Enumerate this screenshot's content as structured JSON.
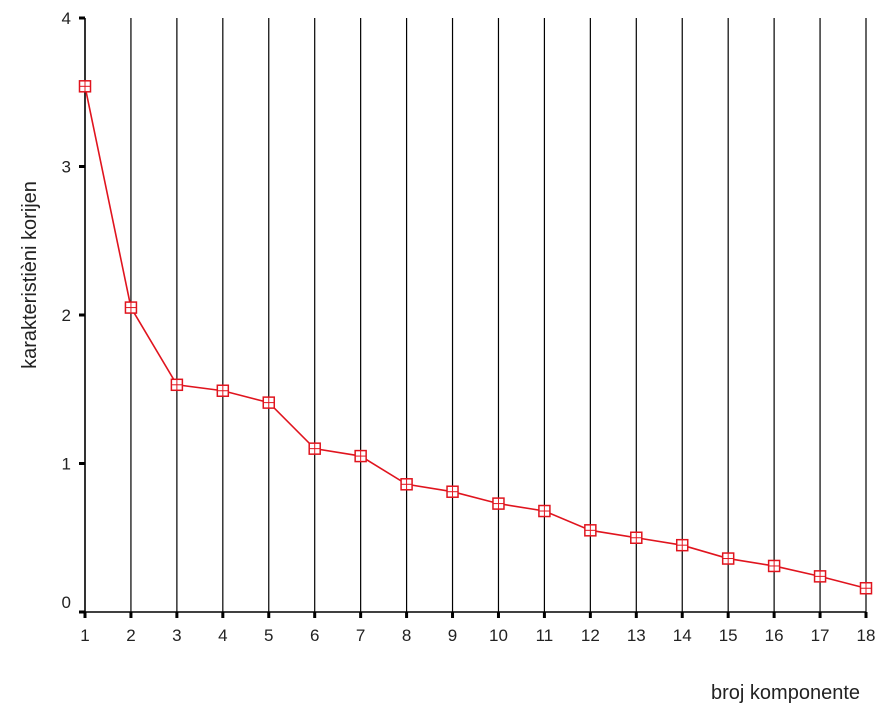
{
  "chart_data": {
    "type": "line",
    "title": "",
    "xlabel": "broj komponente",
    "ylabel": "karakteristièni korijen",
    "x": [
      1,
      2,
      3,
      4,
      5,
      6,
      7,
      8,
      9,
      10,
      11,
      12,
      13,
      14,
      15,
      16,
      17,
      18
    ],
    "xticks": [
      "1",
      "2",
      "3",
      "4",
      "5",
      "6",
      "7",
      "8",
      "9",
      "10",
      "11",
      "12",
      "13",
      "14",
      "15",
      "16",
      "17",
      "18"
    ],
    "yticks": [
      "0",
      "1",
      "2",
      "3",
      "4"
    ],
    "ylim": [
      0,
      4
    ],
    "xlim": [
      1,
      18
    ],
    "grid": "vertical",
    "series": [
      {
        "values": [
          3.54,
          2.05,
          1.53,
          1.49,
          1.41,
          1.1,
          1.05,
          0.86,
          0.81,
          0.73,
          0.68,
          0.55,
          0.5,
          0.45,
          0.36,
          0.31,
          0.24,
          0.16
        ],
        "color": "#e0141e",
        "marker": "square-open"
      }
    ],
    "grid_color": "#000000",
    "axis_color": "#000000"
  }
}
